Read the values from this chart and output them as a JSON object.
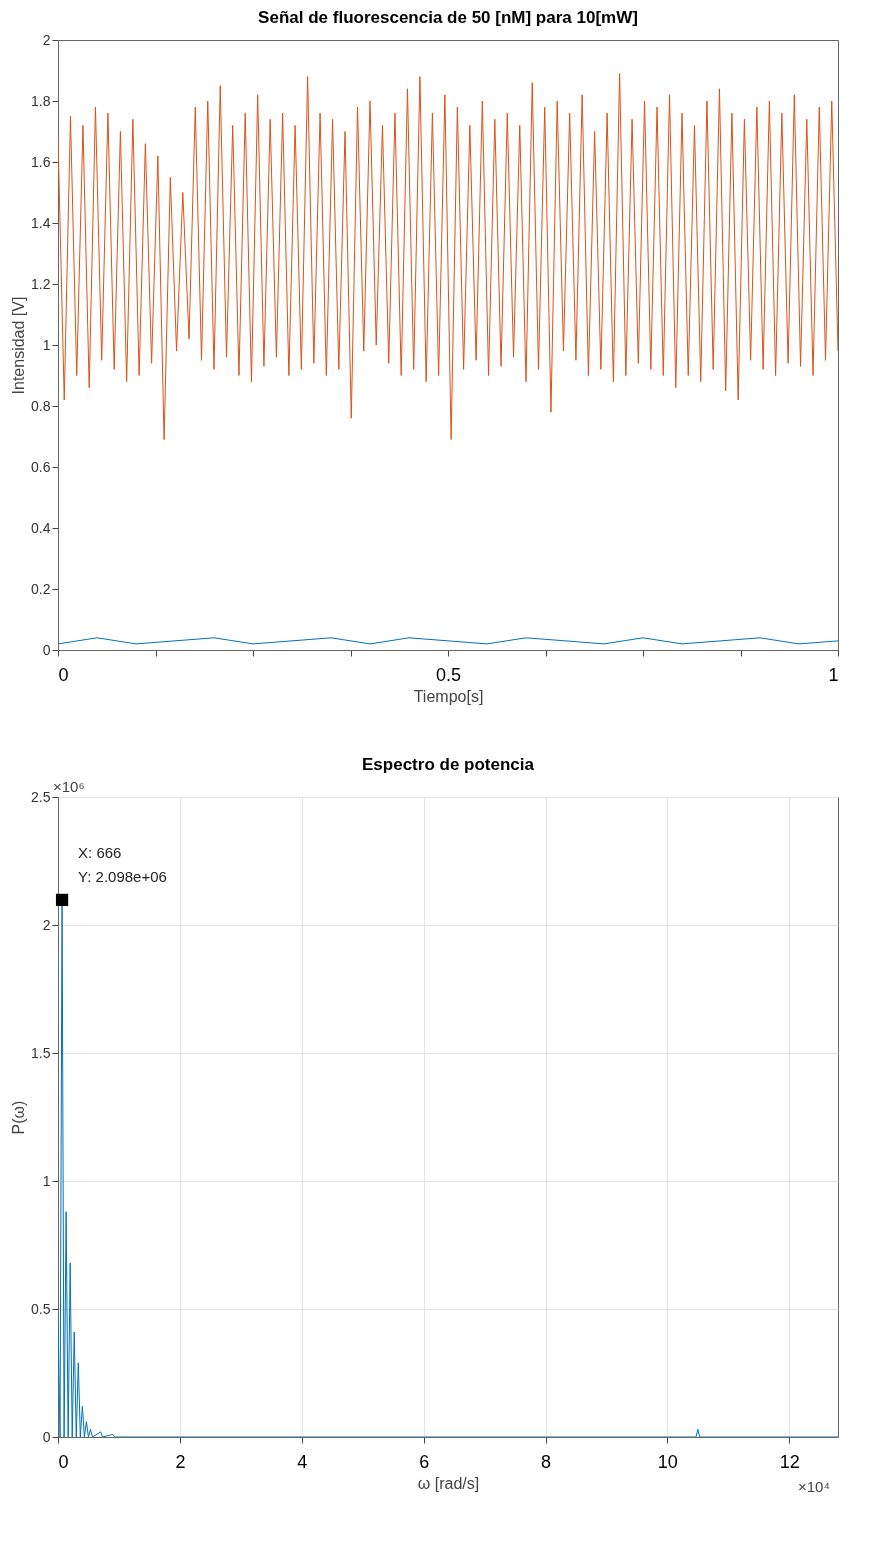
{
  "chart_data": [
    {
      "type": "line",
      "title": "Señal de fluorescencia de 50 [nM] para 10[mW]",
      "xlabel": "Tiempo[s]",
      "ylabel": "Intensidad [V]",
      "xlim": [
        0,
        1
      ],
      "ylim": [
        0,
        2
      ],
      "xticks": [
        0,
        {
          "value": 0.125,
          "label": null
        },
        {
          "value": 0.25,
          "label": null
        },
        {
          "value": 0.375,
          "label": null
        },
        0.5,
        {
          "value": 0.625,
          "label": null
        },
        {
          "value": 0.75,
          "label": null
        },
        {
          "value": 0.875,
          "label": null
        },
        1
      ],
      "yticks": [
        0,
        0.2,
        0.4,
        0.6,
        0.8,
        1,
        1.2,
        1.4,
        1.6,
        1.8,
        2
      ],
      "grid": false,
      "series": [
        {
          "color": "#0072bd",
          "x": [
            0,
            0.05,
            0.1,
            0.15,
            0.2,
            0.25,
            0.3,
            0.35,
            0.4,
            0.45,
            0.5,
            0.55,
            0.6,
            0.65,
            0.7,
            0.75,
            0.8,
            0.85,
            0.9,
            0.95,
            1
          ],
          "values": [
            0.02,
            0.04,
            0.02,
            0.03,
            0.04,
            0.02,
            0.03,
            0.04,
            0.02,
            0.04,
            0.03,
            0.02,
            0.04,
            0.03,
            0.02,
            0.04,
            0.02,
            0.03,
            0.04,
            0.02,
            0.03
          ]
        },
        {
          "color": "#d95319",
          "x": [
            0,
            0.008,
            0.016,
            0.024,
            0.032,
            0.04,
            0.048,
            0.056,
            0.064,
            0.072,
            0.08,
            0.088,
            0.096,
            0.104,
            0.112,
            0.12,
            0.128,
            0.136,
            0.144,
            0.152,
            0.16,
            0.168,
            0.176,
            0.184,
            0.192,
            0.2,
            0.208,
            0.216,
            0.224,
            0.232,
            0.24,
            0.248,
            0.256,
            0.264,
            0.272,
            0.28,
            0.288,
            0.296,
            0.304,
            0.312,
            0.32,
            0.328,
            0.336,
            0.344,
            0.352,
            0.36,
            0.368,
            0.376,
            0.384,
            0.392,
            0.4,
            0.408,
            0.416,
            0.424,
            0.432,
            0.44,
            0.448,
            0.456,
            0.464,
            0.472,
            0.48,
            0.488,
            0.496,
            0.504,
            0.512,
            0.52,
            0.528,
            0.536,
            0.544,
            0.552,
            0.56,
            0.568,
            0.576,
            0.584,
            0.592,
            0.6,
            0.608,
            0.616,
            0.624,
            0.632,
            0.64,
            0.648,
            0.656,
            0.664,
            0.672,
            0.68,
            0.688,
            0.696,
            0.704,
            0.712,
            0.72,
            0.728,
            0.736,
            0.744,
            0.752,
            0.76,
            0.768,
            0.776,
            0.784,
            0.792,
            0.8,
            0.808,
            0.816,
            0.824,
            0.832,
            0.84,
            0.848,
            0.856,
            0.864,
            0.872,
            0.88,
            0.888,
            0.896,
            0.904,
            0.912,
            0.92,
            0.928,
            0.936,
            0.944,
            0.952,
            0.96,
            0.968,
            0.976,
            0.984,
            0.992,
            1
          ],
          "values": [
            1.68,
            0.82,
            1.75,
            0.9,
            1.72,
            0.86,
            1.78,
            0.95,
            1.76,
            0.92,
            1.7,
            0.88,
            1.74,
            0.9,
            1.66,
            0.94,
            1.62,
            0.69,
            1.55,
            0.98,
            1.5,
            1.02,
            1.78,
            0.95,
            1.8,
            0.92,
            1.85,
            0.96,
            1.72,
            0.9,
            1.76,
            0.88,
            1.82,
            0.93,
            1.74,
            0.96,
            1.76,
            0.9,
            1.72,
            0.92,
            1.88,
            0.94,
            1.76,
            0.9,
            1.74,
            0.92,
            1.7,
            0.76,
            1.78,
            0.98,
            1.8,
            1.0,
            1.72,
            0.94,
            1.76,
            0.9,
            1.84,
            0.92,
            1.88,
            0.88,
            1.76,
            0.9,
            1.82,
            0.69,
            1.78,
            0.92,
            1.72,
            0.95,
            1.8,
            0.9,
            1.74,
            0.93,
            1.76,
            0.96,
            1.72,
            0.88,
            1.86,
            0.92,
            1.78,
            0.78,
            1.8,
            0.98,
            1.76,
            0.95,
            1.82,
            0.9,
            1.7,
            0.92,
            1.76,
            0.88,
            1.89,
            0.9,
            1.74,
            0.94,
            1.8,
            0.92,
            1.78,
            0.9,
            1.82,
            0.86,
            1.76,
            0.9,
            1.72,
            0.88,
            1.8,
            0.92,
            1.84,
            0.85,
            1.76,
            0.82,
            1.74,
            0.95,
            1.78,
            0.92,
            1.8,
            0.9,
            1.76,
            0.94,
            1.82,
            0.93,
            1.74,
            0.9,
            1.78,
            0.95,
            1.8,
            0.98
          ]
        }
      ]
    },
    {
      "type": "line",
      "title": "Espectro de potencia",
      "xlabel": "ω [rad/s]",
      "ylabel": "P(ω)",
      "xlim": [
        0,
        12.8
      ],
      "ylim": [
        0,
        2.5
      ],
      "xticks": [
        0,
        2,
        4,
        6,
        8,
        10,
        12
      ],
      "yticks": [
        0,
        0.5,
        1,
        1.5,
        2,
        2.5
      ],
      "grid": true,
      "annotations": [
        "×10⁶",
        "×10⁴",
        {
          "text": "X: 666\nY: 2.098e+06",
          "x": 0.0666,
          "y": 2.098
        }
      ],
      "series": [
        {
          "color": "#0072bd",
          "x": [
            0,
            0.0333,
            0.0666,
            0.0999,
            0.1332,
            0.1665,
            0.1998,
            0.2331,
            0.2664,
            0.2997,
            0.333,
            0.3663,
            0.3996,
            0.4329,
            0.4662,
            0.4995,
            0.5328,
            0.5661,
            0.7,
            0.73,
            0.9,
            0.93,
            10.47,
            10.5,
            10.53,
            12.8
          ],
          "values": [
            0.47,
            0,
            2.098,
            0,
            0.88,
            0,
            0.68,
            0,
            0.41,
            0,
            0.29,
            0,
            0.12,
            0,
            0.06,
            0,
            0.03,
            0,
            0.02,
            0,
            0.01,
            0,
            0,
            0.03,
            0,
            0
          ]
        }
      ]
    }
  ]
}
